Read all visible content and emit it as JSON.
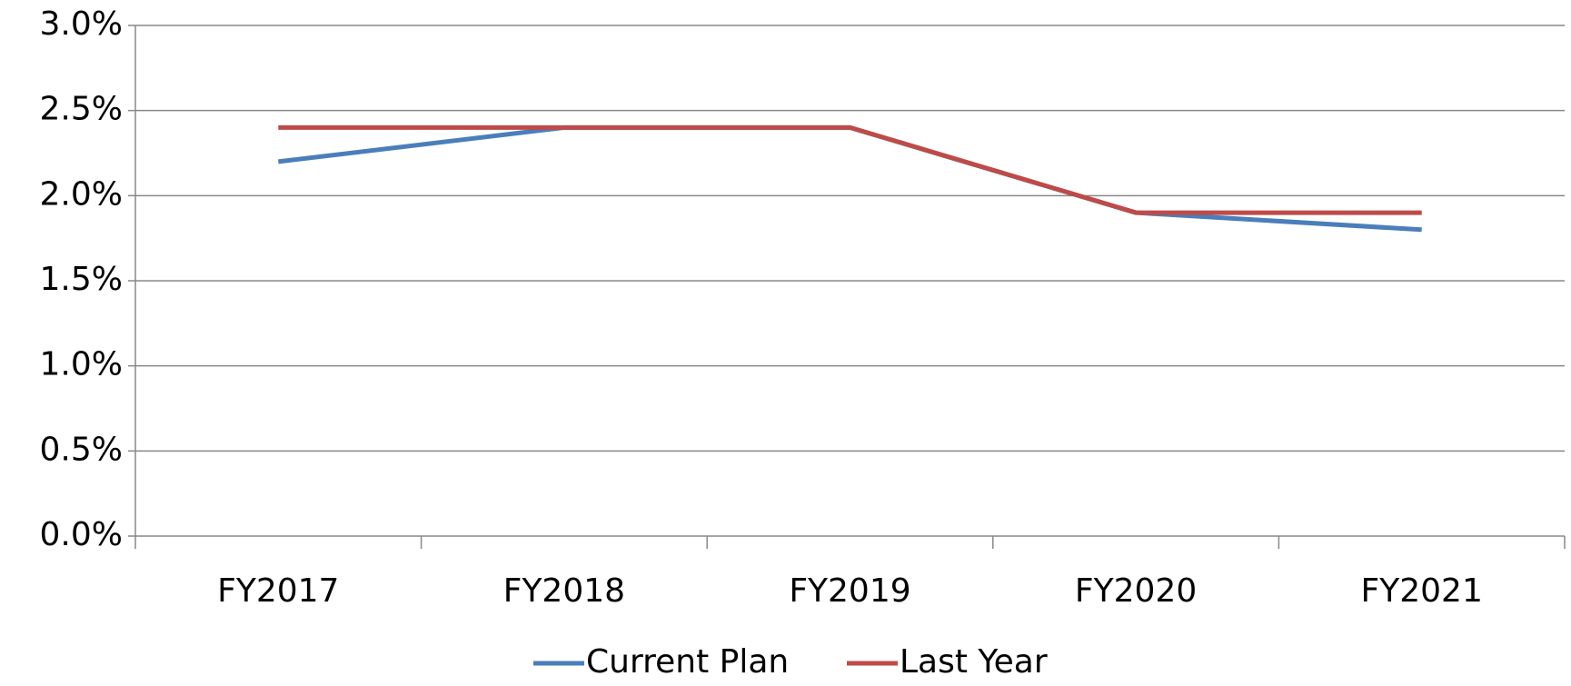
{
  "chart_data": {
    "type": "line",
    "categories": [
      "FY2017",
      "FY2018",
      "FY2019",
      "FY2020",
      "FY2021"
    ],
    "series": [
      {
        "name": "Current Plan",
        "color": "#4a7ebb",
        "values": [
          2.2,
          2.4,
          2.4,
          1.9,
          1.8
        ]
      },
      {
        "name": "Last Year",
        "color": "#be4b48",
        "values": [
          2.4,
          2.4,
          2.4,
          1.9,
          1.9
        ]
      }
    ],
    "ylim": [
      0,
      3
    ],
    "yticks": [
      {
        "value": 0,
        "label": "0.0%"
      },
      {
        "value": 0.5,
        "label": "0.5%"
      },
      {
        "value": 1,
        "label": "1.0%"
      },
      {
        "value": 1.5,
        "label": "1.5%"
      },
      {
        "value": 2,
        "label": "2.0%"
      },
      {
        "value": 2.5,
        "label": "2.5%"
      },
      {
        "value": 3,
        "label": "3.0%"
      }
    ],
    "grid": true,
    "legend": "bottom"
  }
}
